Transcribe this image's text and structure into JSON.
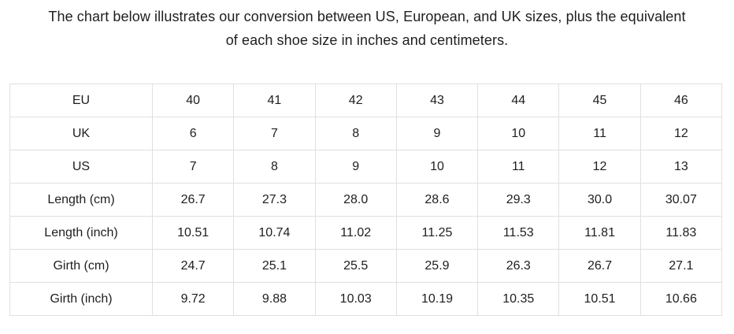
{
  "heading": {
    "line1": "The chart below illustrates our conversion between US, European, and UK sizes, plus the equivalent",
    "line2": "of each shoe size in inches and centimeters."
  },
  "table": {
    "rows": [
      {
        "label": "EU",
        "values": [
          "40",
          "41",
          "42",
          "43",
          "44",
          "45",
          "46"
        ]
      },
      {
        "label": "UK",
        "values": [
          "6",
          "7",
          "8",
          "9",
          "10",
          "11",
          "12"
        ]
      },
      {
        "label": "US",
        "values": [
          "7",
          "8",
          "9",
          "10",
          "11",
          "12",
          "13"
        ]
      },
      {
        "label": "Length (cm)",
        "values": [
          "26.7",
          "27.3",
          "28.0",
          "28.6",
          "29.3",
          "30.0",
          "30.07"
        ]
      },
      {
        "label": "Length (inch)",
        "values": [
          "10.51",
          "10.74",
          "11.02",
          "11.25",
          "11.53",
          "11.81",
          "11.83"
        ]
      },
      {
        "label": "Girth (cm)",
        "values": [
          "24.7",
          "25.1",
          "25.5",
          "25.9",
          "26.3",
          "26.7",
          "27.1"
        ]
      },
      {
        "label": "Girth (inch)",
        "values": [
          "9.72",
          "9.88",
          "10.03",
          "10.19",
          "10.35",
          "10.51",
          "10.66"
        ]
      }
    ]
  },
  "chart_data": {
    "type": "table",
    "title": "The chart below illustrates our conversion between US, European, and UK sizes, plus the equivalent of each shoe size in inches and centimeters.",
    "row_headers": [
      "EU",
      "UK",
      "US",
      "Length (cm)",
      "Length (inch)",
      "Girth (cm)",
      "Girth (inch)"
    ],
    "rows": [
      [
        40,
        41,
        42,
        43,
        44,
        45,
        46
      ],
      [
        6,
        7,
        8,
        9,
        10,
        11,
        12
      ],
      [
        7,
        8,
        9,
        10,
        11,
        12,
        13
      ],
      [
        26.7,
        27.3,
        28.0,
        28.6,
        29.3,
        30.0,
        30.07
      ],
      [
        10.51,
        10.74,
        11.02,
        11.25,
        11.53,
        11.81,
        11.83
      ],
      [
        24.7,
        25.1,
        25.5,
        25.9,
        26.3,
        26.7,
        27.1
      ],
      [
        9.72,
        9.88,
        10.03,
        10.19,
        10.35,
        10.51,
        10.66
      ]
    ],
    "layout": {
      "grid": true,
      "row_header_column_first": true,
      "num_value_columns": 7
    }
  },
  "colors": {
    "bg": "#ffffff",
    "text": "#1e1e1e",
    "border": "#e0e0e0"
  }
}
